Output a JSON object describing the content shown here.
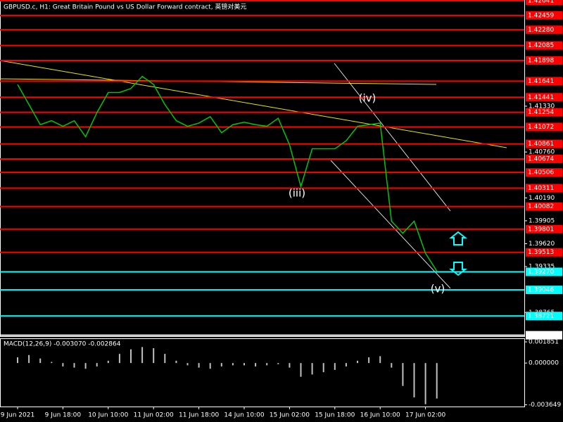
{
  "chart_data": [
    {
      "type": "line",
      "title": "GBPUSD.c, H1:  Great Britain Pound vs US Dollar Forward contract, 英镑对美元",
      "categories": [
        "9 Jun 2021",
        null,
        null,
        null,
        "9 Jun 18:00",
        null,
        null,
        null,
        "10 Jun 10:00",
        null,
        null,
        null,
        "11 Jun 02:00",
        null,
        null,
        null,
        "11 Jun 18:00",
        null,
        null,
        null,
        "14 Jun 10:00",
        null,
        null,
        null,
        "15 Jun 02:00",
        null,
        null,
        null,
        "15 Jun 18:00",
        null,
        null,
        null,
        "16 Jun 10:00",
        null,
        null,
        null,
        "17 Jun 02:00",
        null
      ],
      "series": [
        {
          "name": "GBPUSD.c",
          "color": "#00c800",
          "values": [
            1.416,
            1.4135,
            1.411,
            1.4115,
            1.4108,
            1.4115,
            1.4095,
            1.4125,
            1.415,
            1.415,
            1.4155,
            1.417,
            1.416,
            1.4135,
            1.4115,
            1.4108,
            1.4112,
            1.412,
            1.41,
            1.411,
            1.4113,
            1.411,
            1.4108,
            1.4118,
            1.4085,
            1.4033,
            1.408,
            1.408,
            1.408,
            1.409,
            1.4108,
            1.411,
            1.4112,
            1.399,
            1.3975,
            1.399,
            1.395,
            1.3928
          ]
        }
      ],
      "ylim": [
        1.3847,
        1.4265
      ],
      "yticks": [
        {
          "value": 1.4133,
          "label": "1.41330"
        },
        {
          "value": 1.4076,
          "label": "1.40760"
        },
        {
          "value": 1.4019,
          "label": "1.40190"
        },
        1.39905,
        {
          "value": 1.3962,
          "label": "1.39620"
        },
        1.39335,
        1.38765
      ],
      "levels": [
        {
          "value": 1.42641,
          "color": "#ff0000"
        },
        {
          "value": 1.42459,
          "color": "#ff0000"
        },
        {
          "value": 1.4228,
          "label": "1.42280",
          "color": "#ff0000"
        },
        {
          "value": 1.42085,
          "color": "#ff0000"
        },
        {
          "value": 1.41898,
          "color": "#ff0000"
        },
        {
          "value": 1.41641,
          "color": "#ff0000"
        },
        {
          "value": 1.41441,
          "color": "#ff0000"
        },
        {
          "value": 1.41254,
          "color": "#ff0000"
        },
        {
          "value": 1.41072,
          "color": "#ff0000"
        },
        {
          "value": 1.40861,
          "color": "#ff0000"
        },
        {
          "value": 1.40674,
          "color": "#ff0000"
        },
        {
          "value": 1.40506,
          "color": "#ff0000"
        },
        {
          "value": 1.40311,
          "color": "#ff0000"
        },
        {
          "value": 1.40082,
          "color": "#ff0000"
        },
        {
          "value": 1.39801,
          "color": "#ff0000"
        },
        {
          "value": 1.39513,
          "color": "#ff0000"
        },
        {
          "value": 1.3927,
          "label": "1.39270",
          "color": "#00ffff"
        },
        {
          "value": 1.39046,
          "color": "#00ffff"
        },
        {
          "value": 1.38721,
          "color": "#00ffff"
        },
        {
          "value": 1.38482,
          "color": "#ffffff"
        }
      ],
      "annotations": [
        "(iv)",
        "(iii)",
        "(v)"
      ]
    },
    {
      "type": "histogram",
      "title": "MACD(12,26,9) -0.003070 -0.002864",
      "values": [
        0.0005,
        0.0007,
        0.0004,
        0.0001,
        -0.0003,
        -0.0004,
        -0.0005,
        -0.0003,
        0.0002,
        0.0008,
        0.0012,
        0.0014,
        0.0013,
        0.0008,
        0.0002,
        -0.0002,
        -0.0004,
        -0.0005,
        -0.0003,
        -0.0002,
        -0.0002,
        -0.0003,
        -0.0002,
        -0.0001,
        -0.0004,
        -0.0012,
        -0.001,
        -0.0008,
        -0.0006,
        -0.0003,
        0.0002,
        0.0005,
        0.0006,
        -0.0004,
        -0.002,
        -0.003,
        -0.0036,
        -0.0031
      ],
      "color": "#c0c0c0",
      "ylim": [
        -0.0038,
        0.0021
      ],
      "yticks": [
        0.001851,
        {
          "value": 0,
          "label": "0.000000"
        },
        -0.003649
      ]
    }
  ]
}
